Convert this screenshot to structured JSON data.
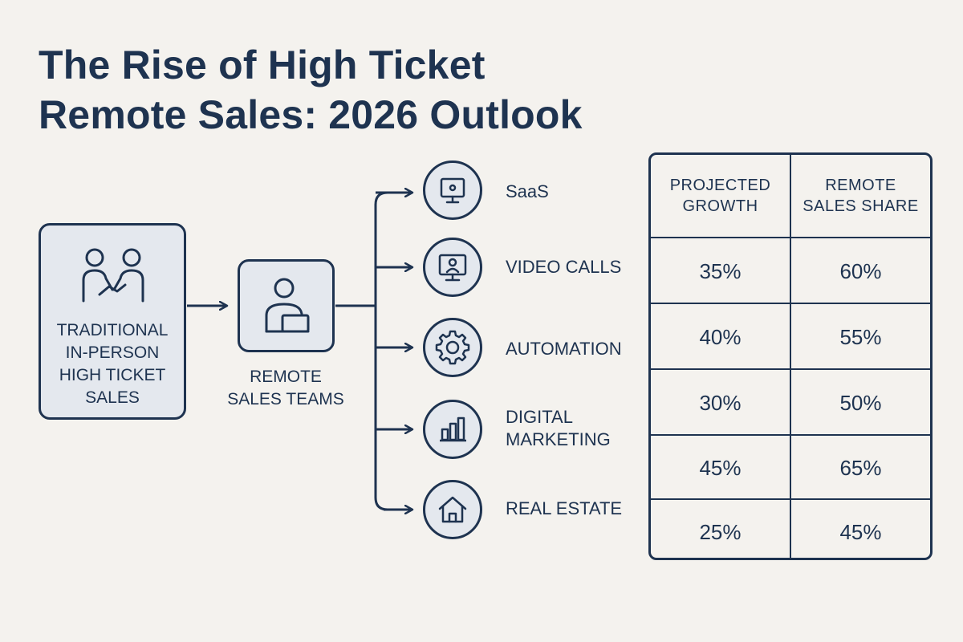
{
  "title": {
    "line1": "The Rise of High Ticket",
    "line2": "Remote Sales: 2026 Outlook"
  },
  "source_box": {
    "label_lines": [
      "TRADITIONAL",
      "IN-PERSON",
      "HIGH TICKET",
      "SALES"
    ],
    "icon": "handshake-icon"
  },
  "middle_box": {
    "label_lines": [
      "REMOTE",
      "SALES TEAMS"
    ],
    "icon": "person-laptop-icon"
  },
  "branches": [
    {
      "label_lines": [
        "SaaS"
      ],
      "icon": "monitor-icon"
    },
    {
      "label_lines": [
        "VIDEO CALLS"
      ],
      "icon": "video-call-icon"
    },
    {
      "label_lines": [
        "AUTOMATION"
      ],
      "icon": "gear-icon"
    },
    {
      "label_lines": [
        "DIGITAL",
        "MARKETING"
      ],
      "icon": "bar-chart-icon"
    },
    {
      "label_lines": [
        "REAL ESTATE"
      ],
      "icon": "house-icon"
    }
  ],
  "table": {
    "headers": [
      [
        "PROJECTED",
        "GROWTH"
      ],
      [
        "REMOTE",
        "SALES SHARE"
      ]
    ],
    "rows": [
      [
        "35%",
        "60%"
      ],
      [
        "40%",
        "55%"
      ],
      [
        "30%",
        "50%"
      ],
      [
        "45%",
        "65%"
      ],
      [
        "25%",
        "45%"
      ]
    ]
  },
  "colors": {
    "background": "#f4f2ee",
    "ink": "#1e3350",
    "box_fill": "#e4e8ee"
  }
}
